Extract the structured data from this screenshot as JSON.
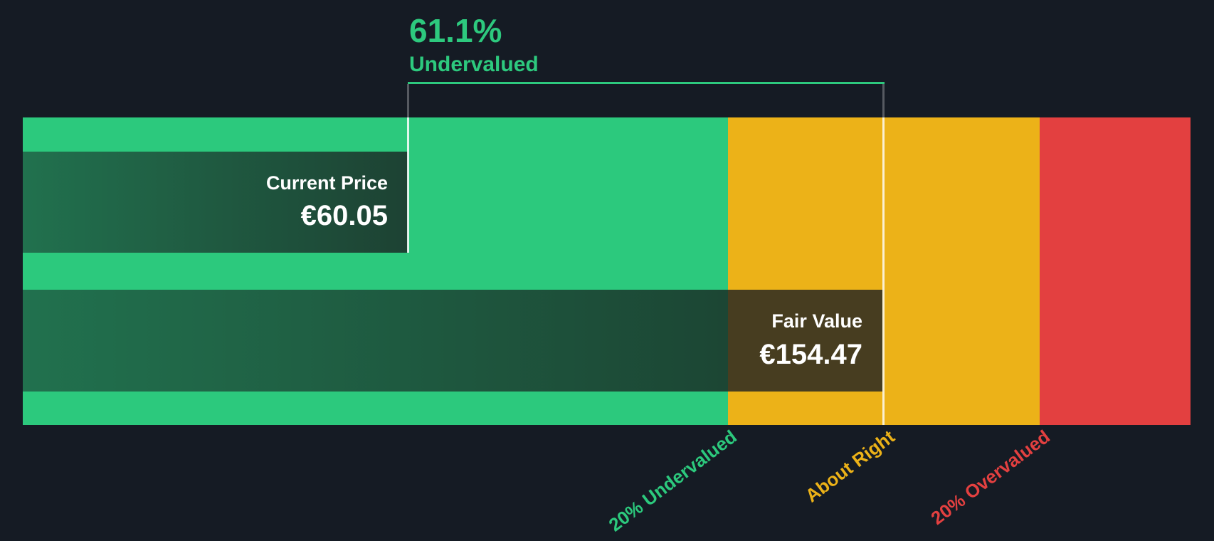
{
  "chart_data": {
    "type": "bar",
    "annotation": {
      "value": "61.1%",
      "label": "Undervalued"
    },
    "bars": [
      {
        "name": "Current Price",
        "value": 60.05,
        "display": "€60.05"
      },
      {
        "name": "Fair Value",
        "value": 154.47,
        "display": "€154.47"
      }
    ],
    "zones": [
      {
        "label": "20% Undervalued",
        "color": "#2cc97d"
      },
      {
        "label": "About Right",
        "color": "#ecb218"
      },
      {
        "label": "20% Overvalued",
        "color": "#e34040"
      }
    ],
    "layout_hint": "horizontal valuation gauge; green undervalued zone, amber about-right zone, red overvalued zone; dark overlay bars mark current price and fair value"
  },
  "colors": {
    "bg": "#151b24",
    "green": "#2cc97d",
    "amber": "#ecb218",
    "red": "#e34040",
    "accent-green": "#2dc97e",
    "olive": "#473d20",
    "bar-start": "#21714e",
    "bar-end": "#1d4233",
    "fair-end": "#1c4634"
  }
}
